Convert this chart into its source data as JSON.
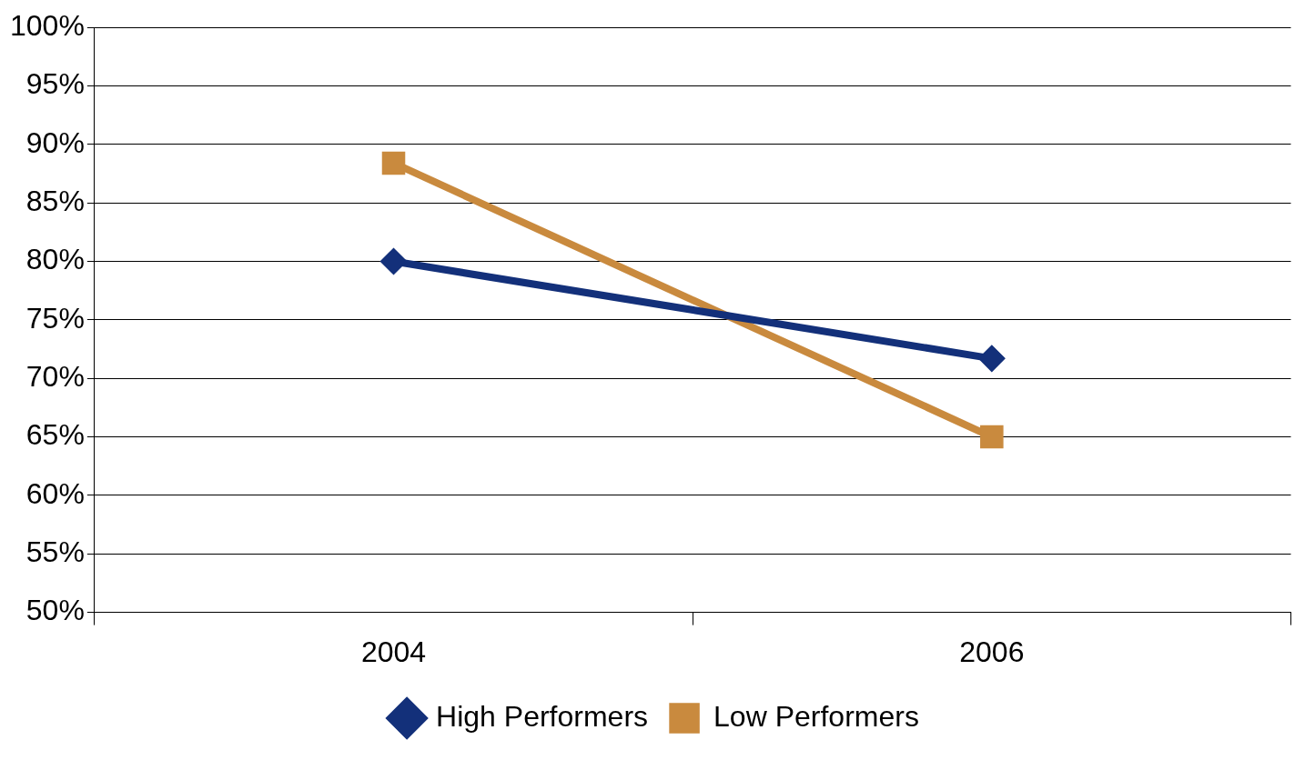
{
  "chart_data": {
    "type": "line",
    "categories": [
      "2004",
      "2006"
    ],
    "series": [
      {
        "name": "High Performers",
        "color": "#13307a",
        "values": [
          80,
          71.7
        ],
        "marker": "diamond"
      },
      {
        "name": "Low Performers",
        "color": "#c98a3e",
        "values": [
          88.4,
          65
        ],
        "marker": "square"
      }
    ],
    "ylim": [
      50,
      100
    ],
    "yticks": [
      {
        "value": 50,
        "label": "50%"
      },
      {
        "value": 55,
        "label": "55%"
      },
      {
        "value": 60,
        "label": "60%"
      },
      {
        "value": 65,
        "label": "65%"
      },
      {
        "value": 70,
        "label": "70%"
      },
      {
        "value": 75,
        "label": "75%"
      },
      {
        "value": 80,
        "label": "80%"
      },
      {
        "value": 85,
        "label": "85%"
      },
      {
        "value": 90,
        "label": "90%"
      },
      {
        "value": 95,
        "label": "95%"
      },
      {
        "value": 100,
        "label": "100%"
      }
    ],
    "grid": "y",
    "legend": "bottom",
    "line_style": "solid"
  }
}
